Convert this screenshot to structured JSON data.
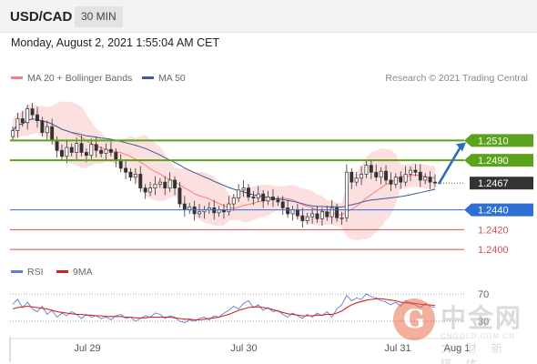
{
  "header": {
    "symbol": "USD/CAD",
    "interval": "30 MIN"
  },
  "datetime": "Monday, August 2, 2021 1:55:04 AM CET",
  "legend": {
    "bollinger": {
      "label": "MA 20 + Bollinger Bands",
      "color": "#f08080"
    },
    "ma50": {
      "label": "MA 50",
      "color": "#3d5a99"
    },
    "copyright": "Research © 2021 Trading Central"
  },
  "rsi_legend": {
    "rsi": {
      "label": "RSI",
      "color": "#5b7fd6"
    },
    "ma9": {
      "label": "9MA",
      "color": "#d62020"
    }
  },
  "watermark": {
    "title": "中金网",
    "url": "CNGOLD.COM.CN",
    "subtitle": "文 财 新 媒 体",
    "logo_glyph": "G"
  },
  "chart_data": {
    "type": "candlestick",
    "x_ticks": [
      "Jul 29",
      "Jul 30",
      "Jul 31",
      "Aug 1"
    ],
    "ylim": [
      1.239,
      1.256
    ],
    "levels": [
      {
        "value": 1.251,
        "label": "1.2510",
        "kind": "resistance",
        "color": "#5ba31c"
      },
      {
        "value": 1.249,
        "label": "1.2490",
        "kind": "resistance",
        "color": "#5ba31c"
      },
      {
        "value": 1.2467,
        "label": "1.2467",
        "kind": "current",
        "color": "#333333"
      },
      {
        "value": 1.244,
        "label": "1.2440",
        "kind": "pivot",
        "color": "#2e6fd6"
      },
      {
        "value": 1.242,
        "label": "1.2420",
        "kind": "support",
        "color": "#d94f4f"
      },
      {
        "value": 1.24,
        "label": "1.2400",
        "kind": "support",
        "color": "#d94f4f"
      }
    ],
    "close_series": [
      1.252,
      1.2532,
      1.2528,
      1.2542,
      1.2536,
      1.253,
      1.2518,
      1.2524,
      1.251,
      1.25,
      1.2494,
      1.2503,
      1.2498,
      1.2507,
      1.2498,
      1.2495,
      1.2506,
      1.25,
      1.2497,
      1.2501,
      1.2498,
      1.249,
      1.2482,
      1.2478,
      1.2473,
      1.2476,
      1.2462,
      1.2458,
      1.2462,
      1.2466,
      1.2468,
      1.2462,
      1.247,
      1.2462,
      1.2446,
      1.244,
      1.2443,
      1.2436,
      1.2438,
      1.244,
      1.2442,
      1.2437,
      1.244,
      1.2438,
      1.2446,
      1.2452,
      1.246,
      1.2462,
      1.2453,
      1.2452,
      1.2456,
      1.2449,
      1.2453,
      1.245,
      1.2448,
      1.2442,
      1.2436,
      1.244,
      1.2434,
      1.2429,
      1.2433,
      1.2436,
      1.2431,
      1.2438,
      1.2433,
      1.2442,
      1.2432,
      1.2432,
      1.2478,
      1.2468,
      1.2472,
      1.2476,
      1.2485,
      1.2478,
      1.2473,
      1.2479,
      1.247,
      1.2466,
      1.2473,
      1.2468,
      1.2476,
      1.248,
      1.2478,
      1.247,
      1.2473,
      1.2468,
      1.2467
    ],
    "rsi": {
      "levels": [
        70,
        30
      ],
      "rsi_series": [
        55,
        62,
        50,
        58,
        48,
        44,
        52,
        40,
        46,
        36,
        42,
        38,
        44,
        40,
        34,
        40,
        36,
        38,
        34,
        36,
        32,
        38,
        40,
        34,
        36,
        30,
        34,
        38,
        36,
        42,
        40,
        34,
        38,
        36,
        30,
        28,
        32,
        30,
        34,
        36,
        32,
        38,
        36,
        42,
        46,
        52,
        48,
        56,
        60,
        50,
        54,
        46,
        50,
        44,
        46,
        40,
        36,
        42,
        38,
        34,
        40,
        36,
        42,
        38,
        44,
        36,
        48,
        54,
        68,
        60,
        64,
        62,
        70,
        66,
        64,
        60,
        58,
        54,
        58,
        52,
        60,
        56,
        54,
        50,
        56,
        52,
        50
      ],
      "ma9_series": [
        48,
        50,
        51,
        52,
        51,
        50,
        49,
        48,
        46,
        44,
        43,
        42,
        41,
        40,
        40,
        39,
        39,
        38,
        38,
        37,
        37,
        37,
        37,
        36,
        36,
        35,
        35,
        35,
        36,
        36,
        36,
        36,
        36,
        35,
        34,
        33,
        33,
        32,
        32,
        33,
        34,
        35,
        36,
        38,
        40,
        43,
        46,
        48,
        50,
        51,
        51,
        50,
        49,
        47,
        45,
        43,
        41,
        40,
        39,
        38,
        38,
        38,
        39,
        39,
        40,
        40,
        42,
        45,
        50,
        54,
        57,
        59,
        61,
        62,
        63,
        63,
        62,
        61,
        60,
        58,
        57,
        57,
        56,
        55,
        54,
        54,
        53
      ]
    }
  }
}
